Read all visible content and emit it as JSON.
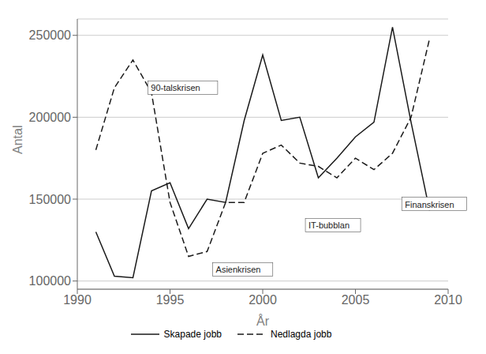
{
  "chart_data": {
    "type": "line",
    "x": [
      1991,
      1992,
      1993,
      1994,
      1995,
      1996,
      1997,
      1998,
      1999,
      2000,
      2001,
      2002,
      2003,
      2004,
      2005,
      2006,
      2007,
      2008,
      2009
    ],
    "series": [
      {
        "name": "Skapade jobb",
        "color": "#1a1a1a",
        "line_style": "solid",
        "values": [
          130000,
          103000,
          102000,
          155000,
          160000,
          132000,
          150000,
          148000,
          198000,
          238000,
          198000,
          200000,
          163000,
          175000,
          188000,
          197000,
          255000,
          197000,
          143000
        ]
      },
      {
        "name": "Nedlagda jobb",
        "color": "#1a1a1a",
        "line_style": "dashed",
        "values": [
          180000,
          218000,
          235000,
          215000,
          148000,
          115000,
          118000,
          148000,
          148000,
          178000,
          183000,
          172000,
          170000,
          163000,
          175000,
          168000,
          178000,
          200000,
          248000
        ]
      }
    ],
    "annotations": [
      {
        "text": "90-talskrisen",
        "x": 1993.8,
        "y": 214000
      },
      {
        "text": "Asienkrisen",
        "x": 1997.3,
        "y": 103000
      },
      {
        "text": "IT-bubblan",
        "x": 2002.3,
        "y": 130000
      },
      {
        "text": "Finanskrisen",
        "x": 2007.5,
        "y": 143000
      }
    ],
    "xlabel": "År",
    "ylabel": "Antal",
    "xlim": [
      1990,
      2010
    ],
    "ylim": [
      95000,
      260000
    ],
    "xticks": [
      1990,
      1995,
      2000,
      2005,
      2010
    ],
    "yticks": [
      100000,
      150000,
      200000,
      250000
    ],
    "grid": true,
    "legend": "bottom"
  }
}
